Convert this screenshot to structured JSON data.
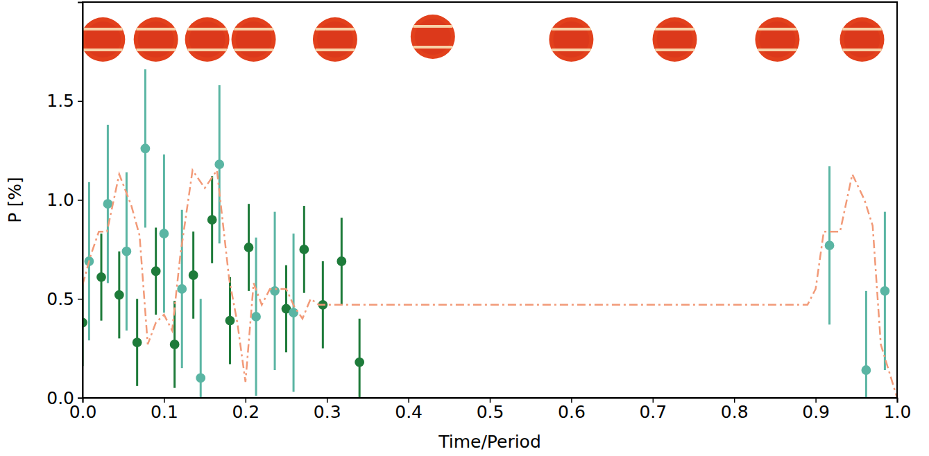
{
  "chart_data": {
    "type": "scatter",
    "x_label": "Time/Period",
    "y_label": "P [%]",
    "xlim": [
      0,
      1
    ],
    "ylim": [
      0,
      2.0
    ],
    "xticks": [
      {
        "value": 0,
        "label": "0.0"
      },
      {
        "value": 0.1,
        "label": "0.1"
      },
      {
        "value": 0.2,
        "label": "0.2"
      },
      {
        "value": 0.3,
        "label": "0.3"
      },
      {
        "value": 0.4,
        "label": "0.4"
      },
      {
        "value": 0.5,
        "label": "0.5"
      },
      {
        "value": 0.6,
        "label": "0.6"
      },
      {
        "value": 0.7,
        "label": "0.7"
      },
      {
        "value": 0.8,
        "label": "0.8"
      },
      {
        "value": 0.9,
        "label": "0.9"
      },
      {
        "value": 1,
        "label": "1.0"
      }
    ],
    "yticks": [
      {
        "value": 0,
        "label": "0.0"
      },
      {
        "value": 0.5,
        "label": "0.5"
      },
      {
        "value": 1,
        "label": "1.0"
      },
      {
        "value": 1.5,
        "label": "1.5"
      }
    ],
    "grid": false,
    "series": [
      {
        "type": "scatter",
        "marker": "circle",
        "color": "#1e7b3a",
        "x": [
          0.0,
          0.023,
          0.045,
          0.067,
          0.09,
          0.113,
          0.136,
          0.159,
          0.181,
          0.204,
          0.25,
          0.272,
          0.295,
          0.318,
          0.34
        ],
        "values": [
          0.38,
          0.61,
          0.52,
          0.28,
          0.64,
          0.27,
          0.62,
          0.9,
          0.39,
          0.76,
          0.45,
          0.75,
          0.47,
          0.69,
          0.18
        ],
        "errors": [
          0.22,
          0.22,
          0.22,
          0.22,
          0.22,
          0.22,
          0.22,
          0.22,
          0.22,
          0.22,
          0.22,
          0.22,
          0.22,
          0.22,
          0.22
        ]
      },
      {
        "type": "scatter",
        "marker": "circle",
        "color": "#5ab5a3",
        "x": [
          0.008,
          0.031,
          0.054,
          0.077,
          0.1,
          0.122,
          0.145,
          0.168,
          0.213,
          0.236,
          0.259,
          0.917,
          0.962,
          0.985
        ],
        "values": [
          0.69,
          0.98,
          0.74,
          1.26,
          0.83,
          0.55,
          0.1,
          1.18,
          0.41,
          0.54,
          0.43,
          0.77,
          0.14,
          0.54
        ],
        "errors": [
          0.4,
          0.4,
          0.4,
          0.4,
          0.4,
          0.4,
          0.4,
          0.4,
          0.4,
          0.4,
          0.4,
          0.4,
          0.4,
          0.4
        ]
      },
      {
        "type": "line",
        "line_style": "dashdot",
        "color": "#f29a78",
        "x": [
          0.0,
          0.01,
          0.02,
          0.03,
          0.045,
          0.06,
          0.07,
          0.08,
          0.09,
          0.1,
          0.11,
          0.12,
          0.135,
          0.15,
          0.165,
          0.18,
          0.19,
          0.2,
          0.21,
          0.22,
          0.23,
          0.24,
          0.25,
          0.26,
          0.27,
          0.28,
          0.29,
          0.3,
          0.89,
          0.9,
          0.91,
          0.93,
          0.945,
          0.96,
          0.97,
          0.98,
          1.0
        ],
        "values": [
          0.57,
          0.72,
          0.84,
          0.84,
          1.13,
          0.97,
          0.82,
          0.27,
          0.38,
          0.42,
          0.34,
          0.72,
          1.15,
          1.06,
          1.15,
          0.6,
          0.38,
          0.08,
          0.58,
          0.47,
          0.55,
          0.55,
          0.55,
          0.46,
          0.4,
          0.5,
          0.47,
          0.47,
          0.47,
          0.55,
          0.84,
          0.84,
          1.13,
          1.0,
          0.87,
          0.27,
          0.0
        ]
      }
    ]
  }
}
